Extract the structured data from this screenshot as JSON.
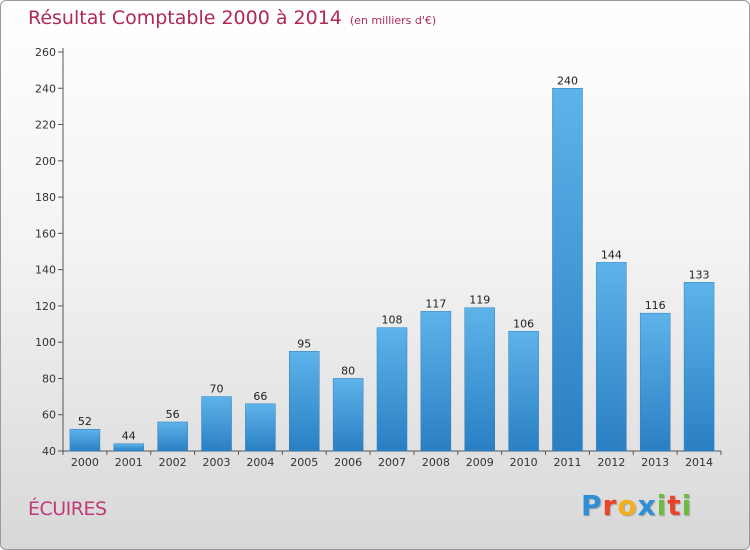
{
  "header": {
    "title": "Résultat Comptable 2000 à 2014",
    "subtitle": "(en milliers d'€)"
  },
  "commune": "ÉCUIRES",
  "logo": {
    "letters": [
      "P",
      "r",
      "o",
      "x",
      "i",
      "t",
      "i"
    ],
    "colors": [
      "#2f8fd6",
      "#e8452c",
      "#f2b01e",
      "#2f8fd6",
      "#6cbd3f",
      "#e8452c",
      "#6cbd3f"
    ]
  },
  "chart_data": {
    "type": "bar",
    "title": "Résultat Comptable 2000 à 2014",
    "subtitle": "(en milliers d'€)",
    "categories": [
      "2000",
      "2001",
      "2002",
      "2003",
      "2004",
      "2005",
      "2006",
      "2007",
      "2008",
      "2009",
      "2010",
      "2011",
      "2012",
      "2013",
      "2014"
    ],
    "values": [
      52,
      44,
      56,
      70,
      66,
      95,
      80,
      108,
      117,
      119,
      106,
      240,
      144,
      116,
      133
    ],
    "ylim": [
      40,
      260
    ],
    "yticks": [
      40,
      60,
      80,
      100,
      120,
      140,
      160,
      180,
      200,
      220,
      240,
      260
    ],
    "grid": false,
    "bar_color": "#3a98dc"
  }
}
